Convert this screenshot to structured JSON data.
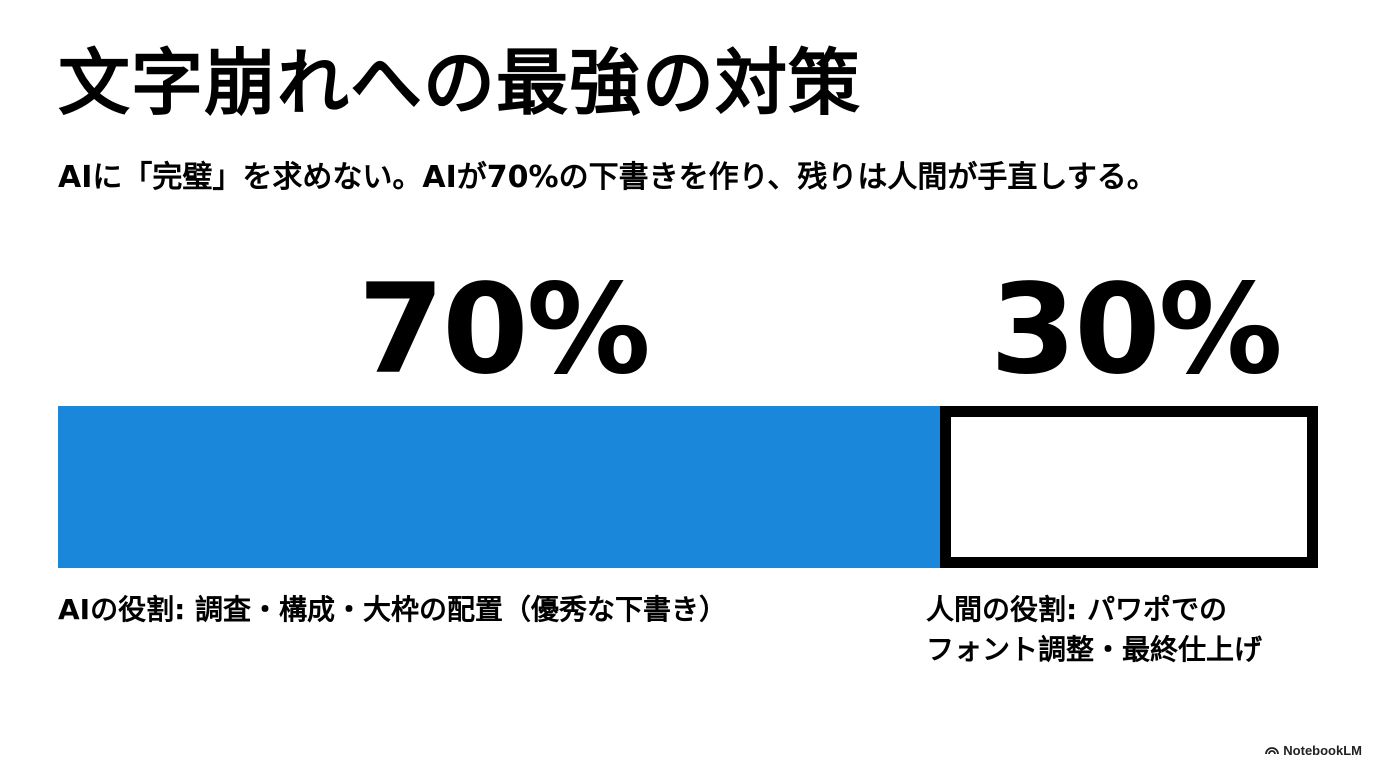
{
  "slide": {
    "title": "文字崩れへの最強の対策",
    "subtitle": "AIに「完璧」を求めない。AIが70%の下書きを作り、残りは人間が手直しする。"
  },
  "split": {
    "ai": {
      "percent_label": "70%",
      "share": 0.7,
      "color": "#1a87da",
      "role": "AIの役割: 調査・構成・大枠の配置（優秀な下書き）"
    },
    "human": {
      "percent_label": "30%",
      "share": 0.3,
      "color": "#ffffff",
      "role_line1": "人間の役割: パワポでの",
      "role_line2": "フォント調整・最終仕上げ"
    }
  },
  "branding": {
    "logo_icon": "notebooklm-logo-icon",
    "text": "NotebookLM"
  }
}
